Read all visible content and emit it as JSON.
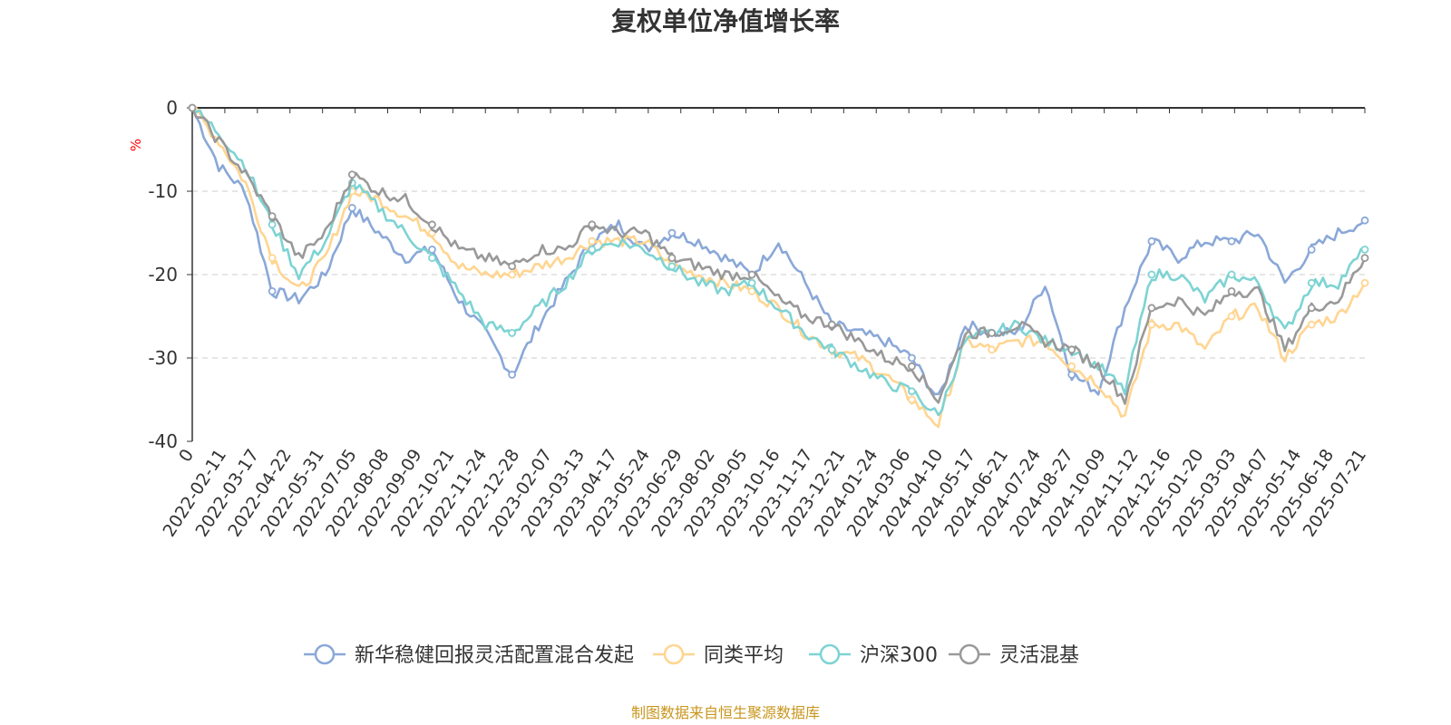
{
  "chart_data": {
    "type": "line",
    "title": "复权单位净值增长率",
    "ylabel": "%",
    "ylim": [
      -40,
      0
    ],
    "yticks": [
      0,
      -10,
      -20,
      -30,
      -40
    ],
    "x_tick_labels": [
      "0",
      "2022-02-11",
      "2022-03-17",
      "2022-04-22",
      "2022-05-31",
      "2022-07-05",
      "2022-08-08",
      "2022-09-09",
      "2022-10-21",
      "2022-11-24",
      "2022-12-28",
      "2023-02-07",
      "2023-03-13",
      "2023-04-17",
      "2023-05-24",
      "2023-06-29",
      "2023-08-02",
      "2023-09-05",
      "2023-10-16",
      "2023-11-17",
      "2023-12-21",
      "2024-01-24",
      "2024-03-06",
      "2024-04-10",
      "2024-05-17",
      "2024-06-21",
      "2024-07-24",
      "2024-08-27",
      "2024-10-09",
      "2024-11-12",
      "2024-12-16",
      "2025-01-20",
      "2025-03-03",
      "2025-04-07",
      "2025-05-14",
      "2025-06-18",
      "2025-07-21"
    ],
    "grid": "horizontal-dashed",
    "legend_position": "bottom",
    "source_note": "制图数据来自恒生聚源数据库",
    "series": [
      {
        "name": "新华稳健回报灵活配置混合发起",
        "color": "#8aa8d8",
        "values": [
          0,
          -7,
          -10,
          -22,
          -23,
          -20,
          -12,
          -15,
          -18,
          -17,
          -23,
          -27,
          -32,
          -26,
          -21,
          -16,
          -14,
          -17,
          -15,
          -16,
          -18,
          -20,
          -16,
          -21,
          -26,
          -27,
          -28,
          -30,
          -35,
          -26,
          -27,
          -27,
          -21,
          -32,
          -34,
          -24,
          -16,
          -18,
          -16,
          -16,
          -15,
          -21,
          -17,
          -15,
          -13.5
        ]
      },
      {
        "name": "同类平均",
        "color": "#ffd591",
        "values": [
          0,
          -4,
          -9,
          -18,
          -22,
          -18,
          -10,
          -11,
          -13,
          -15,
          -19,
          -20,
          -20,
          -19,
          -18,
          -16,
          -16,
          -16,
          -19,
          -20,
          -21,
          -22,
          -24,
          -27,
          -29,
          -30,
          -32,
          -35,
          -38,
          -28,
          -29,
          -28,
          -28,
          -31,
          -33,
          -37,
          -26,
          -26,
          -29,
          -25,
          -24,
          -30,
          -26,
          -25,
          -21
        ]
      },
      {
        "name": "沪深300",
        "color": "#7ed3d3",
        "values": [
          0,
          -3,
          -7,
          -14,
          -20,
          -16,
          -9,
          -12,
          -15,
          -18,
          -22,
          -26,
          -27,
          -24,
          -21,
          -17,
          -16,
          -17,
          -19,
          -21,
          -22,
          -21,
          -24,
          -27,
          -29,
          -31,
          -33,
          -34,
          -37,
          -28,
          -27,
          -26,
          -28,
          -29,
          -31,
          -34,
          -20,
          -20,
          -23,
          -20,
          -21,
          -27,
          -21,
          -21,
          -17
        ]
      },
      {
        "name": "灵活混基",
        "color": "#999999",
        "values": [
          0,
          -4,
          -8,
          -13,
          -18,
          -15,
          -8,
          -10,
          -11,
          -14,
          -17,
          -18,
          -19,
          -17,
          -17,
          -14,
          -15,
          -15,
          -18,
          -19,
          -20,
          -20,
          -23,
          -25,
          -26,
          -28,
          -30,
          -31,
          -35,
          -27,
          -27,
          -26,
          -28,
          -29,
          -31,
          -35,
          -24,
          -23,
          -25,
          -22,
          -22,
          -29,
          -24,
          -23,
          -18
        ]
      }
    ]
  }
}
